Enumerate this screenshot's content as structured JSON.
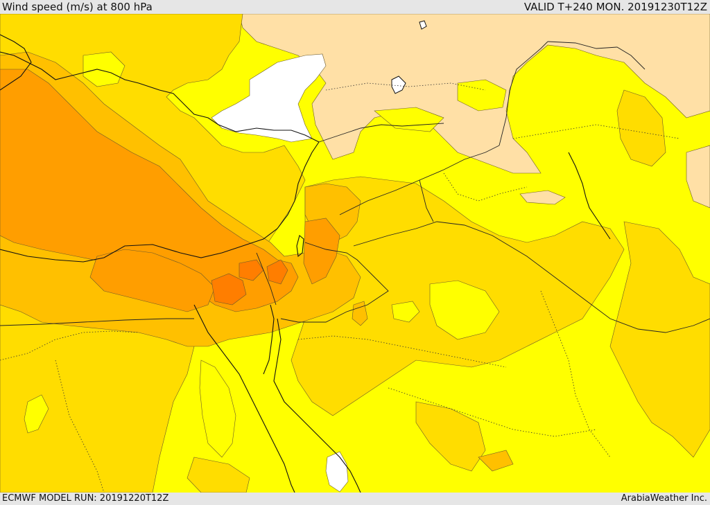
{
  "header": {
    "title": "Wind speed (m/s) at 800 hPa",
    "valid": "VALID T+240 MON. 20191230T12Z"
  },
  "footer": {
    "model_run": "ECMWF MODEL RUN: 20191220T12Z",
    "credit": "ArabiaWeather Inc."
  },
  "map": {
    "field": "wind-speed",
    "level": "800 hPa",
    "colors": {
      "calm": "#ffffff",
      "light": "#ffe0a6",
      "moderate": "#ffff00",
      "fresh": "#ffdd00",
      "strong": "#ffc000",
      "stronger": "#ff9e00",
      "strongest": "#ff7e00"
    }
  }
}
